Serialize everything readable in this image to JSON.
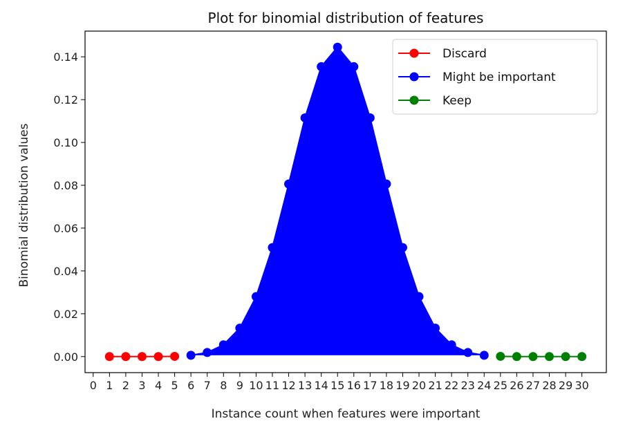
{
  "chart_data": {
    "type": "line",
    "title": "Plot for binomial distribution of features",
    "xlabel": "Instance count when features were important",
    "ylabel": "Binomial distribution values",
    "xlim": [
      -0.5,
      31.5
    ],
    "ylim": [
      -0.0075,
      0.152
    ],
    "x_ticks": [
      0,
      1,
      2,
      3,
      4,
      5,
      6,
      7,
      8,
      9,
      10,
      11,
      12,
      13,
      14,
      15,
      16,
      17,
      18,
      19,
      20,
      21,
      22,
      23,
      24,
      25,
      26,
      27,
      28,
      29,
      30
    ],
    "x_tick_labels": [
      "0",
      "1",
      "2",
      "3",
      "4",
      "5",
      "6",
      "7",
      "8",
      "9",
      "10",
      "11",
      "12",
      "13",
      "14",
      "15",
      "16",
      "17",
      "18",
      "19",
      "20",
      "21",
      "22",
      "23",
      "24",
      "25",
      "26",
      "27",
      "28",
      "29",
      "30"
    ],
    "y_ticks": [
      0,
      0.02,
      0.04,
      0.06,
      0.08,
      0.1,
      0.12,
      0.14
    ],
    "y_tick_labels": [
      "0.00",
      "0.02",
      "0.04",
      "0.06",
      "0.08",
      "0.10",
      "0.12",
      "0.14"
    ],
    "grid": false,
    "legend": {
      "placement": "top-right"
    },
    "series": [
      {
        "name": "Discard",
        "color": "#ff0000",
        "filled": false,
        "x": [
          1,
          2,
          3,
          4,
          5
        ],
        "y": [
          0.0,
          0.0,
          0.0,
          0.0,
          0.0001
        ]
      },
      {
        "name": "Might be important",
        "color": "#0000ff",
        "filled": true,
        "x": [
          6,
          7,
          8,
          9,
          10,
          11,
          12,
          13,
          14,
          15,
          16,
          17,
          18,
          19,
          20,
          21,
          22,
          23,
          24
        ],
        "y": [
          0.0006,
          0.0019,
          0.0055,
          0.0133,
          0.028,
          0.0509,
          0.0806,
          0.1115,
          0.1354,
          0.1445,
          0.1354,
          0.1115,
          0.0806,
          0.0509,
          0.028,
          0.0133,
          0.0055,
          0.0019,
          0.0006
        ]
      },
      {
        "name": "Keep",
        "color": "#008000",
        "filled": false,
        "x": [
          25,
          26,
          27,
          28,
          29,
          30
        ],
        "y": [
          0.0001,
          0.0,
          0.0,
          0.0,
          0.0,
          0.0
        ]
      }
    ]
  }
}
